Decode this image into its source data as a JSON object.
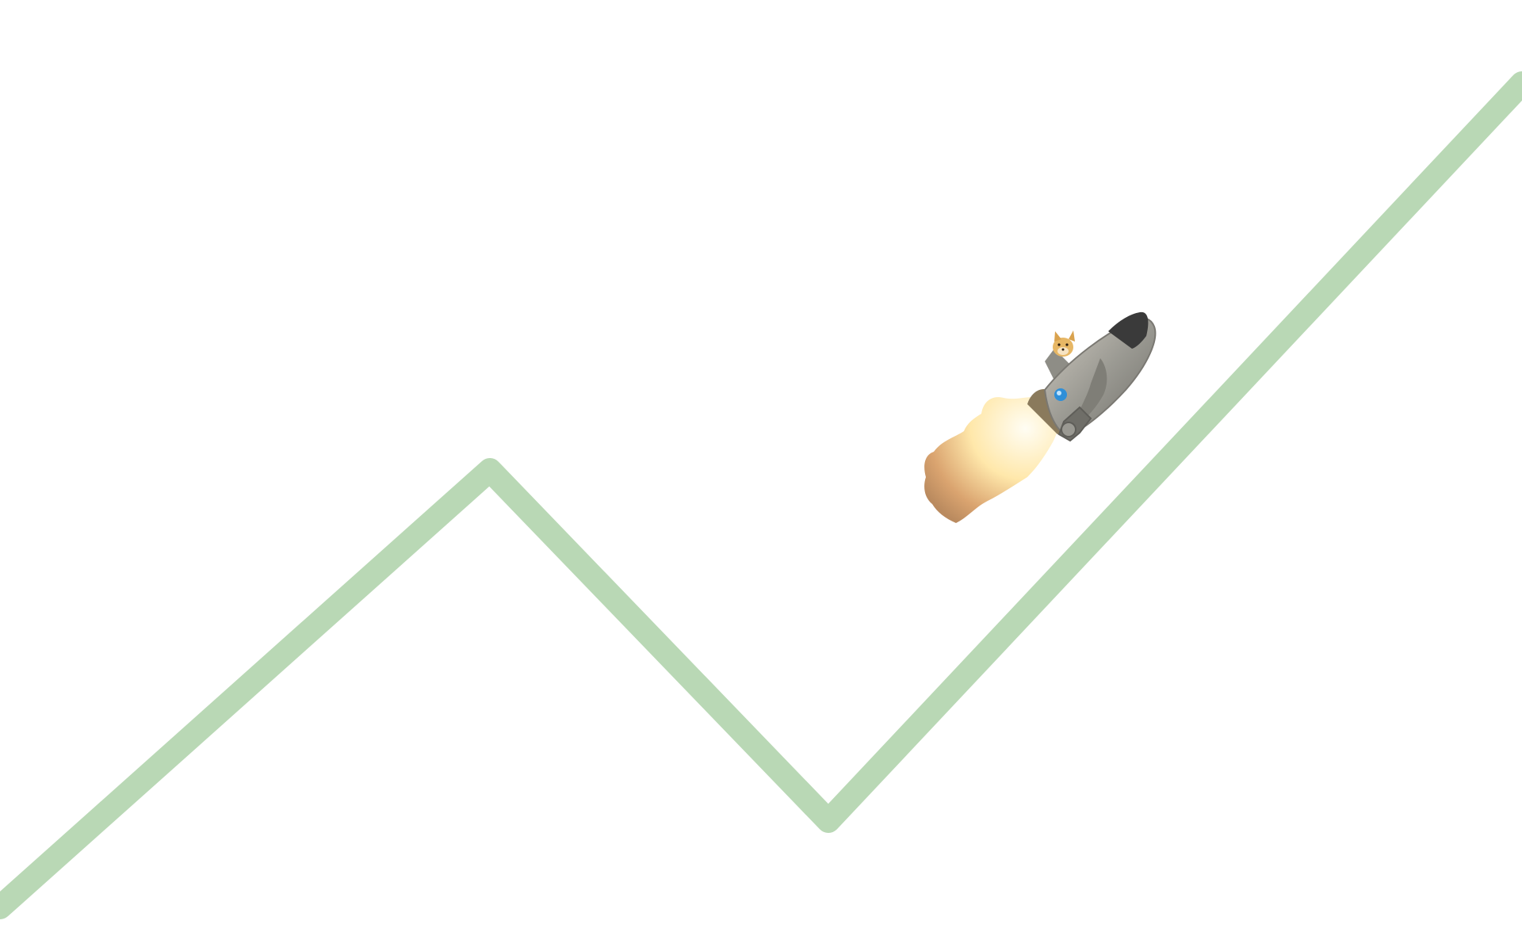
{
  "scene": {
    "background_color": "#ffffff",
    "trend_line": {
      "color": "#b9d8b5",
      "direction_sequence": [
        "up",
        "down",
        "up"
      ]
    },
    "rocket": {
      "body_color": "#9b9a93",
      "nose_color": "#3a3a3a",
      "emblem_color": "#2f8fd8",
      "flame_color": "#ffe7a8",
      "smoke_color": "#b8875a",
      "passenger": {
        "icon": "shiba-dog-icon",
        "fur_color": "#e7b765"
      }
    }
  }
}
